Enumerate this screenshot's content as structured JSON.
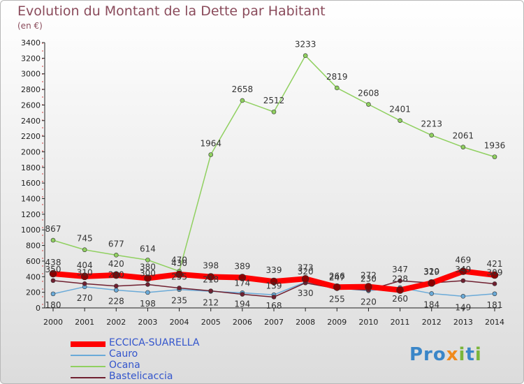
{
  "chart_data": {
    "type": "line",
    "title": "Evolution du Montant de la Dette par Habitant",
    "subtitle": "(en €)",
    "x": [
      "2000",
      "2001",
      "2002",
      "2003",
      "2004",
      "2005",
      "2006",
      "2007",
      "2008",
      "2009",
      "2010",
      "2011",
      "2012",
      "2013",
      "2014"
    ],
    "yticks": [
      0,
      200,
      400,
      600,
      800,
      1000,
      1200,
      1400,
      1600,
      1800,
      2000,
      2200,
      2400,
      2600,
      2800,
      3000,
      3200,
      3400
    ],
    "ylim": [
      0,
      3400
    ],
    "grid": false,
    "series": [
      {
        "name": "ECCICA-SUARELLA",
        "color": "#ff0000",
        "values": [
          438,
          404,
          420,
          380,
          430,
          398,
          389,
          339,
          373,
          266,
          272,
          228,
          319,
          469,
          421
        ]
      },
      {
        "name": "Cauro",
        "color": "#6aaad8",
        "values": [
          180,
          270,
          228,
          198,
          235,
          212,
          194,
          168,
          330,
          255,
          220,
          260,
          184,
          149,
          181
        ]
      },
      {
        "name": "Ocana",
        "color": "#90d060",
        "values": [
          867,
          745,
          677,
          614,
          470,
          1964,
          2658,
          2512,
          3233,
          2819,
          2608,
          2401,
          2213,
          2061,
          1936
        ]
      },
      {
        "name": "Bastelicaccia",
        "color": "#702030",
        "values": [
          350,
          310,
          280,
          300,
          255,
          218,
          174,
          139,
          320,
          247,
          230,
          347,
          320,
          349,
          309
        ]
      }
    ],
    "data_labels": [
      {
        "series": 0,
        "labels": [
          "438",
          "404",
          "420",
          "380",
          "430",
          "398",
          "389",
          "339",
          "373",
          "266",
          "272",
          "228",
          "319",
          "469",
          "421"
        ]
      },
      {
        "series": 1,
        "labels": [
          "180",
          "270",
          "228",
          "198",
          "235",
          "212",
          "194",
          "168",
          "330",
          "255",
          "220",
          "260",
          "184",
          "149",
          "181"
        ]
      },
      {
        "series": 2,
        "labels": [
          "867",
          "745",
          "677",
          "614",
          "470",
          "1964",
          "2658",
          "2512",
          "3233",
          "2819",
          "2608",
          "2401",
          "2213",
          "2061",
          "1936"
        ]
      },
      {
        "series": 3,
        "labels": [
          "350",
          "310",
          "280",
          "300",
          "255",
          "218",
          "174",
          "139",
          "320",
          "247",
          "230",
          "347",
          "320",
          "349",
          "309"
        ]
      }
    ]
  },
  "legend": {
    "items": [
      "ECCICA-SUARELLA",
      "Cauro",
      "Ocana",
      "Bastelicaccia"
    ]
  },
  "logo": {
    "part1": "Pro",
    "part2": "x",
    "part3": "i",
    "part4": "t",
    "part5": "i"
  }
}
